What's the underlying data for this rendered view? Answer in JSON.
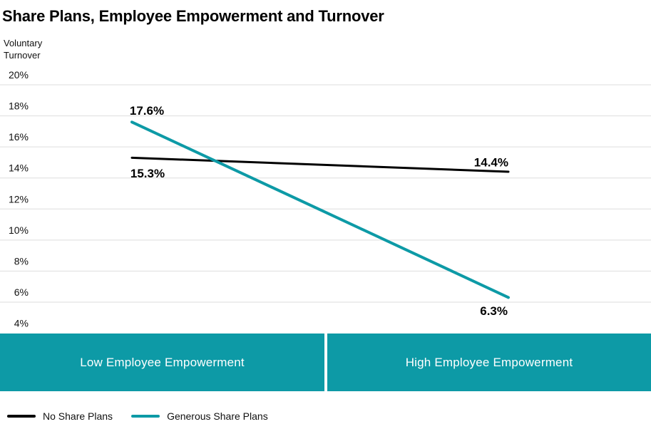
{
  "title": "Share Plans, Employee Empowerment and Turnover",
  "y_axis": {
    "label_line1": "Voluntary",
    "label_line2": "Turnover"
  },
  "chart_data": {
    "type": "line",
    "title": "Share Plans, Employee Empowerment and Turnover",
    "ylabel": "Voluntary Turnover",
    "categories": [
      "Low Employee Empowerment",
      "High Employee Empowerment"
    ],
    "series": [
      {
        "name": "No Share Plans",
        "color": "#000000",
        "values": [
          15.3,
          14.4
        ],
        "point_labels": [
          "15.3%",
          "14.4%"
        ]
      },
      {
        "name": "Generous Share Plans",
        "color": "#0d9aa6",
        "values": [
          17.6,
          6.3
        ],
        "point_labels": [
          "17.6%",
          "6.3%"
        ]
      }
    ],
    "ylim": [
      4,
      20
    ],
    "ytick_step": 2,
    "yticks": [
      {
        "value": 20,
        "label": "20%"
      },
      {
        "value": 18,
        "label": "18%"
      },
      {
        "value": 16,
        "label": "16%"
      },
      {
        "value": 14,
        "label": "14%"
      },
      {
        "value": 12,
        "label": "12%"
      },
      {
        "value": 10,
        "label": "10%"
      },
      {
        "value": 8,
        "label": "8%"
      },
      {
        "value": 6,
        "label": "6%"
      },
      {
        "value": 4,
        "label": "4%"
      }
    ],
    "grid": "horizontal",
    "gridline_color": "#dddddd",
    "legend_position": "bottom-left"
  },
  "category_bar": {
    "items": [
      {
        "label": "Low Employee Empowerment",
        "bg": "#0d9aa6",
        "text_color": "#ffffff"
      },
      {
        "label": "High Employee Empowerment",
        "bg": "#0d9aa6",
        "text_color": "#ffffff"
      }
    ]
  },
  "legend": {
    "items": [
      {
        "label": "No Share Plans",
        "color": "#000000"
      },
      {
        "label": "Generous Share Plans",
        "color": "#0d9aa6"
      }
    ]
  }
}
